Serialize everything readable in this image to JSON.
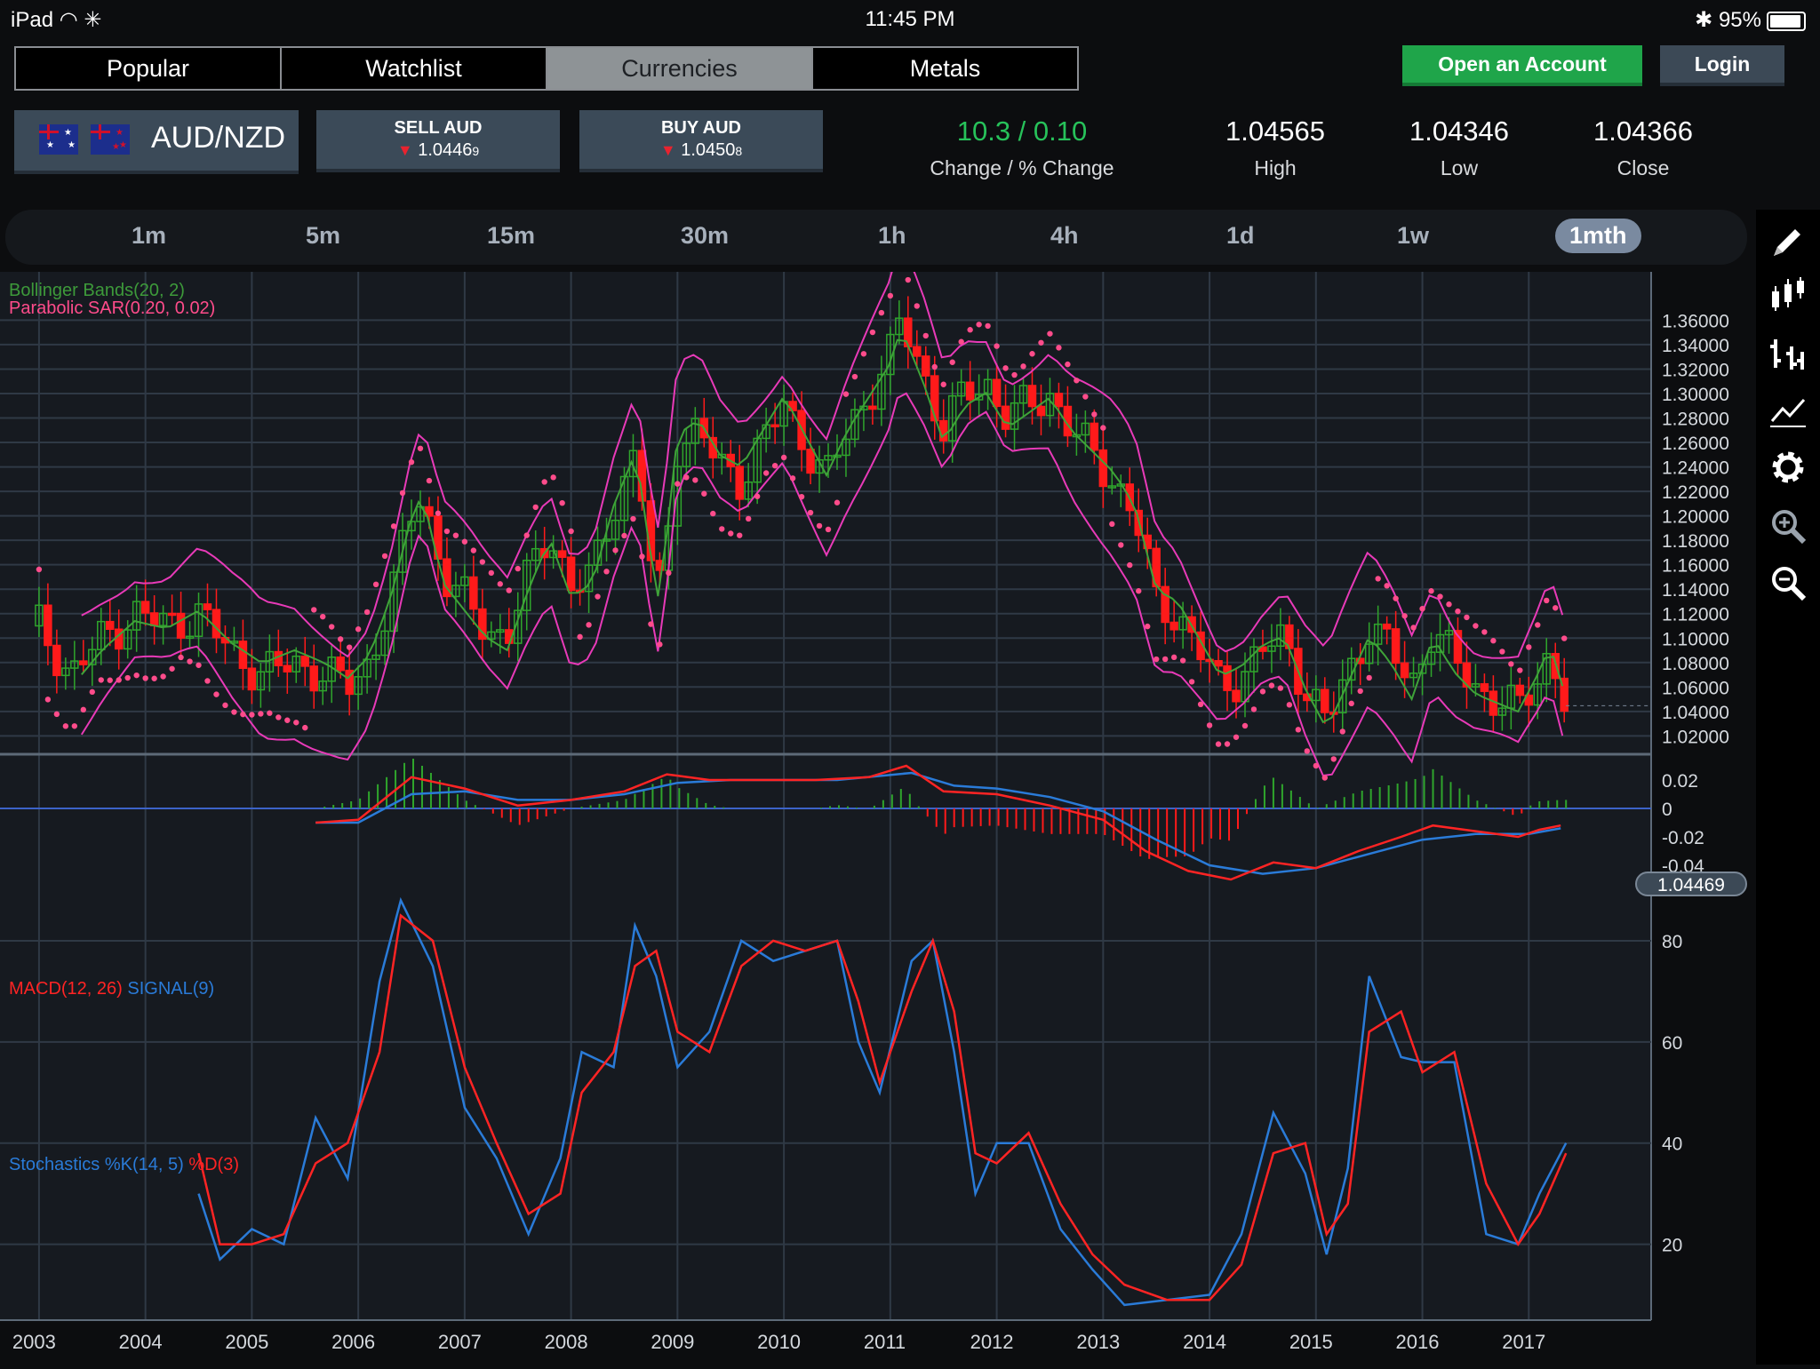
{
  "status_bar": {
    "device": "iPad",
    "time": "11:45 PM",
    "battery": "95%",
    "battery_level": 0.95
  },
  "market_tabs": [
    {
      "label": "Popular",
      "active": false
    },
    {
      "label": "Watchlist",
      "active": false
    },
    {
      "label": "Currencies",
      "active": true
    },
    {
      "label": "Metals",
      "active": false
    }
  ],
  "header": {
    "open_account": "Open an Account",
    "login": "Login"
  },
  "instrument": {
    "pair": "AUD/NZD",
    "sell": {
      "label": "SELL AUD",
      "price": "1.0446",
      "pip": "9"
    },
    "buy": {
      "label": "BUY AUD",
      "price": "1.0450",
      "pip": "8"
    }
  },
  "stats": {
    "change": {
      "value": "10.3 / 0.10",
      "label": "Change / % Change"
    },
    "high": {
      "value": "1.04565",
      "label": "High"
    },
    "low": {
      "value": "1.04346",
      "label": "Low"
    },
    "close": {
      "value": "1.04366",
      "label": "Close"
    }
  },
  "timeframes": [
    {
      "label": "1m",
      "active": false
    },
    {
      "label": "5m",
      "active": false
    },
    {
      "label": "15m",
      "active": false
    },
    {
      "label": "30m",
      "active": false
    },
    {
      "label": "1h",
      "active": false
    },
    {
      "label": "4h",
      "active": false
    },
    {
      "label": "1d",
      "active": false
    },
    {
      "label": "1w",
      "active": false
    },
    {
      "label": "1mth",
      "active": true
    }
  ],
  "sidebar_icons": [
    "pencil-icon",
    "candlestick-icon",
    "bar-chart-icon",
    "line-chart-icon",
    "gear-icon",
    "zoom-in-icon",
    "zoom-out-icon"
  ],
  "colors": {
    "up": "#2fa52c",
    "down": "#ff1a1a",
    "bollinger_bands": "#e83ab8",
    "bollinger_mid": "#3fa339",
    "sar": "#ff4c8b",
    "macd": "#ff2424",
    "signal": "#2a7bd8",
    "accent_green": "#1fa54a"
  },
  "chart_data": [
    {
      "type": "candlestick",
      "title": "AUD/NZD",
      "indicators": [
        "Bollinger Bands(20, 2)",
        "Parabolic SAR(0.20, 0.02)"
      ],
      "x_ticks": [
        "2003",
        "2004",
        "2005",
        "2006",
        "2007",
        "2008",
        "2009",
        "2010",
        "2011",
        "2012",
        "2013",
        "2014",
        "2015",
        "2016",
        "2017"
      ],
      "y_ticks": [
        "1.36000",
        "1.34000",
        "1.32000",
        "1.30000",
        "1.28000",
        "1.26000",
        "1.24000",
        "1.22000",
        "1.20000",
        "1.18000",
        "1.16000",
        "1.14000",
        "1.12000",
        "1.10000",
        "1.08000",
        "1.06000",
        "1.04000",
        "1.02000"
      ],
      "ylim": [
        1.005,
        1.385
      ],
      "last_price": "1.04469",
      "close_path": [
        [
          2003.0,
          1.11
        ],
        [
          2003.3,
          1.07
        ],
        [
          2003.6,
          1.1
        ],
        [
          2003.9,
          1.12
        ],
        [
          2004.2,
          1.11
        ],
        [
          2004.5,
          1.12
        ],
        [
          2004.8,
          1.09
        ],
        [
          2005.1,
          1.07
        ],
        [
          2005.4,
          1.08
        ],
        [
          2005.7,
          1.07
        ],
        [
          2005.9,
          1.06
        ],
        [
          2006.1,
          1.08
        ],
        [
          2006.3,
          1.13
        ],
        [
          2006.5,
          1.2
        ],
        [
          2006.6,
          1.22
        ],
        [
          2006.8,
          1.15
        ],
        [
          2007.0,
          1.13
        ],
        [
          2007.2,
          1.11
        ],
        [
          2007.4,
          1.1
        ],
        [
          2007.6,
          1.15
        ],
        [
          2007.8,
          1.19
        ],
        [
          2008.0,
          1.14
        ],
        [
          2008.2,
          1.15
        ],
        [
          2008.4,
          1.21
        ],
        [
          2008.6,
          1.25
        ],
        [
          2008.7,
          1.2
        ],
        [
          2008.8,
          1.12
        ],
        [
          2008.9,
          1.18
        ],
        [
          2009.0,
          1.26
        ],
        [
          2009.2,
          1.27
        ],
        [
          2009.4,
          1.24
        ],
        [
          2009.6,
          1.23
        ],
        [
          2009.8,
          1.26
        ],
        [
          2010.0,
          1.29
        ],
        [
          2010.2,
          1.26
        ],
        [
          2010.4,
          1.23
        ],
        [
          2010.6,
          1.27
        ],
        [
          2010.8,
          1.3
        ],
        [
          2011.0,
          1.33
        ],
        [
          2011.1,
          1.36
        ],
        [
          2011.3,
          1.32
        ],
        [
          2011.5,
          1.27
        ],
        [
          2011.7,
          1.3
        ],
        [
          2011.9,
          1.31
        ],
        [
          2012.1,
          1.28
        ],
        [
          2012.3,
          1.29
        ],
        [
          2012.5,
          1.3
        ],
        [
          2012.7,
          1.27
        ],
        [
          2012.9,
          1.25
        ],
        [
          2013.1,
          1.23
        ],
        [
          2013.3,
          1.2
        ],
        [
          2013.5,
          1.13
        ],
        [
          2013.7,
          1.12
        ],
        [
          2013.9,
          1.09
        ],
        [
          2014.1,
          1.06
        ],
        [
          2014.3,
          1.07
        ],
        [
          2014.5,
          1.09
        ],
        [
          2014.7,
          1.1
        ],
        [
          2014.9,
          1.06
        ],
        [
          2015.1,
          1.03
        ],
        [
          2015.3,
          1.07
        ],
        [
          2015.5,
          1.11
        ],
        [
          2015.7,
          1.09
        ],
        [
          2015.9,
          1.06
        ],
        [
          2016.1,
          1.11
        ],
        [
          2016.3,
          1.08
        ],
        [
          2016.5,
          1.06
        ],
        [
          2016.7,
          1.05
        ],
        [
          2016.9,
          1.04
        ],
        [
          2017.1,
          1.07
        ],
        [
          2017.2,
          1.09
        ],
        [
          2017.35,
          1.045
        ]
      ]
    },
    {
      "type": "line",
      "title": "MACD(12, 26) SIGNAL(9)",
      "legend": [
        "MACD(12, 26)",
        "SIGNAL(9)"
      ],
      "y_ticks": [
        "0.02",
        "0",
        "-0.02",
        "-0.04"
      ],
      "ylim": [
        -0.045,
        0.025
      ],
      "series": [
        {
          "name": "MACD(12, 26)",
          "values": [
            [
              2005.6,
              -0.01
            ],
            [
              2006.0,
              -0.008
            ],
            [
              2006.3,
              0.01
            ],
            [
              2006.5,
              0.022
            ],
            [
              2007.0,
              0.014
            ],
            [
              2007.5,
              0.002
            ],
            [
              2008.0,
              0.006
            ],
            [
              2008.5,
              0.012
            ],
            [
              2008.9,
              0.024
            ],
            [
              2009.3,
              0.02
            ],
            [
              2009.8,
              0.02
            ],
            [
              2010.3,
              0.02
            ],
            [
              2010.8,
              0.022
            ],
            [
              2011.15,
              0.03
            ],
            [
              2011.5,
              0.012
            ],
            [
              2012.0,
              0.01
            ],
            [
              2012.5,
              0.002
            ],
            [
              2013.0,
              -0.008
            ],
            [
              2013.4,
              -0.03
            ],
            [
              2013.8,
              -0.044
            ],
            [
              2014.2,
              -0.05
            ],
            [
              2014.6,
              -0.038
            ],
            [
              2015.0,
              -0.042
            ],
            [
              2015.4,
              -0.03
            ],
            [
              2015.8,
              -0.02
            ],
            [
              2016.1,
              -0.012
            ],
            [
              2016.5,
              -0.016
            ],
            [
              2016.9,
              -0.02
            ],
            [
              2017.1,
              -0.015
            ],
            [
              2017.3,
              -0.012
            ]
          ]
        },
        {
          "name": "SIGNAL(9)",
          "values": [
            [
              2005.6,
              -0.01
            ],
            [
              2006.0,
              -0.01
            ],
            [
              2006.5,
              0.01
            ],
            [
              2007.0,
              0.012
            ],
            [
              2007.5,
              0.006
            ],
            [
              2008.0,
              0.006
            ],
            [
              2008.5,
              0.01
            ],
            [
              2009.0,
              0.018
            ],
            [
              2009.5,
              0.02
            ],
            [
              2010.0,
              0.02
            ],
            [
              2010.5,
              0.02
            ],
            [
              2011.2,
              0.025
            ],
            [
              2011.6,
              0.016
            ],
            [
              2012.0,
              0.014
            ],
            [
              2012.5,
              0.008
            ],
            [
              2013.0,
              -0.002
            ],
            [
              2013.5,
              -0.022
            ],
            [
              2014.0,
              -0.04
            ],
            [
              2014.5,
              -0.046
            ],
            [
              2015.0,
              -0.042
            ],
            [
              2015.5,
              -0.032
            ],
            [
              2016.0,
              -0.022
            ],
            [
              2016.5,
              -0.018
            ],
            [
              2017.0,
              -0.018
            ],
            [
              2017.3,
              -0.014
            ]
          ]
        }
      ]
    },
    {
      "type": "line",
      "title": "Stochastics %K(14, 5) %D(3)",
      "legend": [
        "Stochastics %K(14, 5)",
        "%D(3)"
      ],
      "y_ticks": [
        "80",
        "60",
        "40",
        "20"
      ],
      "ylim": [
        5,
        90
      ],
      "series": [
        {
          "name": "%K(14, 5)",
          "values": [
            [
              2004.5,
              30
            ],
            [
              2004.7,
              17
            ],
            [
              2005.0,
              23
            ],
            [
              2005.3,
              20
            ],
            [
              2005.6,
              45
            ],
            [
              2005.9,
              33
            ],
            [
              2006.2,
              72
            ],
            [
              2006.4,
              88
            ],
            [
              2006.7,
              75
            ],
            [
              2007.0,
              47
            ],
            [
              2007.3,
              37
            ],
            [
              2007.6,
              22
            ],
            [
              2007.9,
              37
            ],
            [
              2008.1,
              58
            ],
            [
              2008.4,
              55
            ],
            [
              2008.6,
              83
            ],
            [
              2008.8,
              73
            ],
            [
              2009.0,
              55
            ],
            [
              2009.3,
              62
            ],
            [
              2009.6,
              80
            ],
            [
              2009.9,
              76
            ],
            [
              2010.2,
              78
            ],
            [
              2010.5,
              80
            ],
            [
              2010.7,
              60
            ],
            [
              2010.9,
              50
            ],
            [
              2011.2,
              76
            ],
            [
              2011.4,
              80
            ],
            [
              2011.6,
              58
            ],
            [
              2011.8,
              30
            ],
            [
              2012.0,
              40
            ],
            [
              2012.3,
              40
            ],
            [
              2012.6,
              23
            ],
            [
              2012.9,
              15
            ],
            [
              2013.2,
              8
            ],
            [
              2013.6,
              9
            ],
            [
              2014.0,
              10
            ],
            [
              2014.3,
              22
            ],
            [
              2014.6,
              46
            ],
            [
              2014.9,
              34
            ],
            [
              2015.1,
              18
            ],
            [
              2015.3,
              35
            ],
            [
              2015.5,
              73
            ],
            [
              2015.8,
              57
            ],
            [
              2016.0,
              56
            ],
            [
              2016.3,
              56
            ],
            [
              2016.6,
              22
            ],
            [
              2016.9,
              20
            ],
            [
              2017.1,
              30
            ],
            [
              2017.35,
              40
            ]
          ]
        },
        {
          "name": "%D(3)",
          "values": [
            [
              2004.5,
              38
            ],
            [
              2004.7,
              20
            ],
            [
              2005.0,
              20
            ],
            [
              2005.3,
              22
            ],
            [
              2005.6,
              36
            ],
            [
              2005.9,
              40
            ],
            [
              2006.2,
              58
            ],
            [
              2006.4,
              85
            ],
            [
              2006.7,
              80
            ],
            [
              2007.0,
              55
            ],
            [
              2007.3,
              40
            ],
            [
              2007.6,
              26
            ],
            [
              2007.9,
              30
            ],
            [
              2008.1,
              50
            ],
            [
              2008.4,
              58
            ],
            [
              2008.6,
              75
            ],
            [
              2008.8,
              78
            ],
            [
              2009.0,
              62
            ],
            [
              2009.3,
              58
            ],
            [
              2009.6,
              75
            ],
            [
              2009.9,
              80
            ],
            [
              2010.2,
              78
            ],
            [
              2010.5,
              80
            ],
            [
              2010.7,
              68
            ],
            [
              2010.9,
              52
            ],
            [
              2011.2,
              70
            ],
            [
              2011.4,
              80
            ],
            [
              2011.6,
              66
            ],
            [
              2011.8,
              38
            ],
            [
              2012.0,
              36
            ],
            [
              2012.3,
              42
            ],
            [
              2012.6,
              28
            ],
            [
              2012.9,
              18
            ],
            [
              2013.2,
              12
            ],
            [
              2013.6,
              9
            ],
            [
              2014.0,
              9
            ],
            [
              2014.3,
              16
            ],
            [
              2014.6,
              38
            ],
            [
              2014.9,
              40
            ],
            [
              2015.1,
              22
            ],
            [
              2015.3,
              28
            ],
            [
              2015.5,
              62
            ],
            [
              2015.8,
              66
            ],
            [
              2016.0,
              54
            ],
            [
              2016.3,
              58
            ],
            [
              2016.6,
              32
            ],
            [
              2016.9,
              20
            ],
            [
              2017.1,
              26
            ],
            [
              2017.35,
              38
            ]
          ]
        }
      ]
    }
  ]
}
